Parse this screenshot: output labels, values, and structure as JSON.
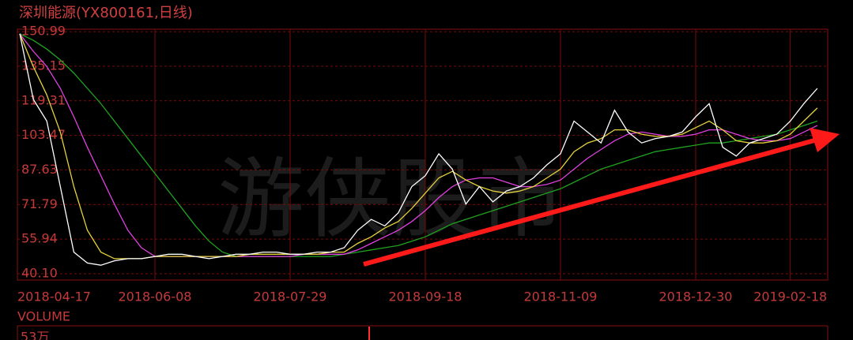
{
  "chart_data": {
    "type": "line",
    "title": "深圳能源(YX800161,日线)",
    "watermark": "游侠股市",
    "volume_title": "VOLUME",
    "volume_tick": "53万",
    "categories": [
      "2018-04-17",
      null,
      null,
      null,
      null,
      null,
      null,
      null,
      null,
      null,
      "2018-06-08",
      null,
      null,
      null,
      null,
      null,
      null,
      null,
      null,
      null,
      "2018-07-29",
      null,
      null,
      null,
      null,
      null,
      null,
      null,
      null,
      null,
      "2018-09-18",
      null,
      null,
      null,
      null,
      null,
      null,
      null,
      null,
      null,
      "2018-11-09",
      null,
      null,
      null,
      null,
      null,
      null,
      null,
      null,
      null,
      "2018-12-30",
      null,
      null,
      null,
      null,
      null,
      null,
      "2019-02-18",
      null,
      null
    ],
    "series": [
      {
        "color": "#ffffff",
        "values": [
          150,
          120,
          110,
          80,
          50,
          45,
          44,
          46,
          47,
          47,
          48,
          49,
          49,
          48,
          47,
          48,
          49,
          49,
          50,
          50,
          49,
          49,
          50,
          50,
          52,
          60,
          65,
          62,
          68,
          80,
          85,
          95,
          88,
          72,
          80,
          73,
          78,
          80,
          84,
          90,
          95,
          110,
          105,
          100,
          115,
          105,
          100,
          102,
          103,
          105,
          112,
          118,
          98,
          94,
          100,
          102,
          104,
          110,
          118,
          125
        ]
      },
      {
        "color": "#e6d23c",
        "values": [
          150,
          135,
          122,
          105,
          80,
          60,
          50,
          47,
          47,
          47,
          48,
          48,
          48,
          48,
          48,
          48,
          48,
          49,
          49,
          49,
          49,
          49,
          49,
          50,
          50,
          54,
          57,
          61,
          64,
          70,
          77,
          84,
          87,
          83,
          80,
          78,
          77,
          78,
          80,
          84,
          88,
          96,
          100,
          102,
          106,
          106,
          104,
          103,
          103,
          104,
          107,
          110,
          106,
          101,
          100,
          100,
          101,
          104,
          110,
          116
        ]
      },
      {
        "color": "#e040e0",
        "values": [
          150,
          142,
          135,
          125,
          112,
          98,
          85,
          72,
          60,
          52,
          48,
          48,
          48,
          48,
          48,
          48,
          48,
          48,
          48,
          48,
          48,
          49,
          49,
          49,
          49,
          51,
          54,
          57,
          60,
          64,
          69,
          75,
          80,
          83,
          84,
          84,
          82,
          80,
          80,
          81,
          83,
          88,
          93,
          97,
          101,
          104,
          105,
          104,
          103,
          103,
          104,
          106,
          106,
          104,
          102,
          101,
          101,
          102,
          105,
          108
        ]
      },
      {
        "color": "#1fa31f",
        "values": [
          150,
          147,
          143,
          138,
          132,
          125,
          118,
          110,
          102,
          94,
          86,
          78,
          70,
          62,
          55,
          50,
          48,
          48,
          48,
          48,
          48,
          48,
          48,
          48,
          49,
          50,
          51,
          52,
          53,
          55,
          57,
          60,
          63,
          65,
          67,
          69,
          71,
          73,
          75,
          77,
          79,
          82,
          85,
          88,
          90,
          92,
          94,
          96,
          97,
          98,
          99,
          100,
          100,
          101,
          102,
          103,
          104,
          106,
          108,
          110
        ]
      }
    ],
    "ylim": [
      37.2,
      152.1
    ],
    "yticks": [
      150.99,
      135.15,
      119.31,
      103.47,
      87.63,
      71.79,
      55.94,
      {
        "value": 40.1,
        "label": "40.10"
      }
    ],
    "grid": true,
    "grid_color": "#7a0a0a"
  }
}
